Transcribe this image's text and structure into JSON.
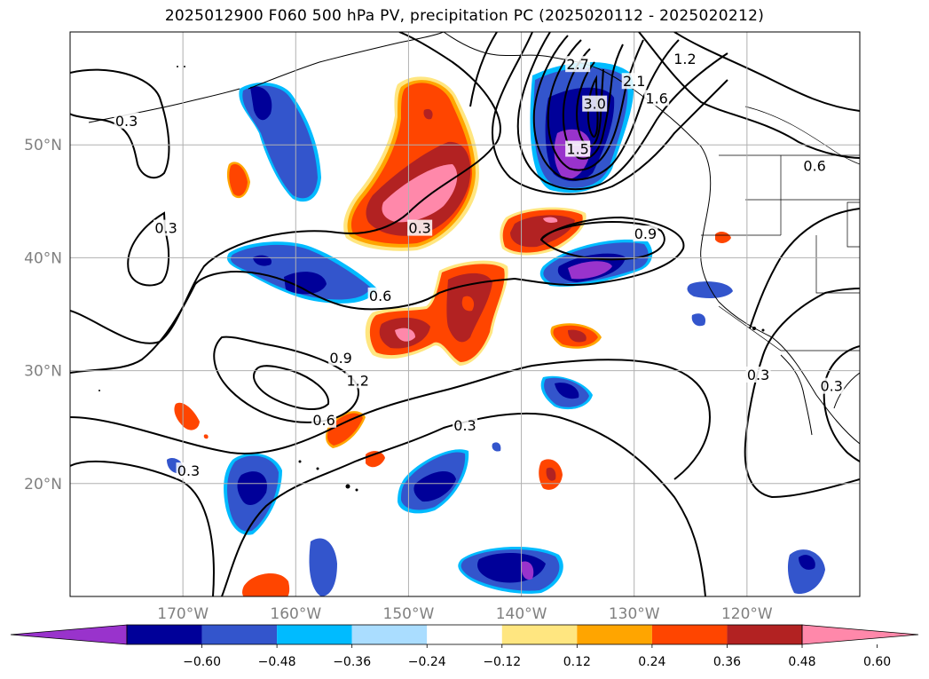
{
  "title": "2025012900 F060 500 hPa PV, precipitation PC (2025020112 - 2025020212)",
  "map": {
    "lat_ticks": [
      {
        "lat": 50,
        "label": "50°N"
      },
      {
        "lat": 40,
        "label": "40°N"
      },
      {
        "lat": 30,
        "label": "30°N"
      },
      {
        "lat": 20,
        "label": "20°N"
      }
    ],
    "lon_ticks": [
      {
        "lon": -170,
        "label": "170°W"
      },
      {
        "lon": -160,
        "label": "160°W"
      },
      {
        "lon": -150,
        "label": "150°W"
      },
      {
        "lon": -140,
        "label": "140°W"
      },
      {
        "lon": -130,
        "label": "130°W"
      },
      {
        "lon": -120,
        "label": "120°W"
      }
    ],
    "tick_label_color": "#808080",
    "contour_labels": [
      {
        "text": "0.3",
        "lon": -175,
        "lat": 52
      },
      {
        "text": "0.3",
        "lon": -171.5,
        "lat": 42.5
      },
      {
        "text": "0.3",
        "lon": -149,
        "lat": 42.5
      },
      {
        "text": "0.3",
        "lon": -145,
        "lat": 25
      },
      {
        "text": "0.3",
        "lon": -169.5,
        "lat": 21
      },
      {
        "text": "0.3",
        "lon": -119,
        "lat": 29.5
      },
      {
        "text": "0.3",
        "lon": -112.5,
        "lat": 28.5
      },
      {
        "text": "0.6",
        "lon": -152.5,
        "lat": 36.5
      },
      {
        "text": "0.6",
        "lon": -157.5,
        "lat": 25.5
      },
      {
        "text": "0.6",
        "lon": -114,
        "lat": 48
      },
      {
        "text": "0.9",
        "lon": -156,
        "lat": 31
      },
      {
        "text": "0.9",
        "lon": -129,
        "lat": 42
      },
      {
        "text": "1.2",
        "lon": -154.5,
        "lat": 29
      },
      {
        "text": "1.2",
        "lon": -125.5,
        "lat": 57.5
      },
      {
        "text": "2.7",
        "lon": -135,
        "lat": 57
      },
      {
        "text": "3.0",
        "lon": -133.5,
        "lat": 53.5
      },
      {
        "text": "1.5",
        "lon": -135,
        "lat": 49.5
      },
      {
        "text": "2.1",
        "lon": -130,
        "lat": 55.5
      },
      {
        "text": "1.6",
        "lon": -128,
        "lat": 54
      }
    ]
  },
  "colorbar": {
    "ticks": [
      "−0.60",
      "−0.48",
      "−0.36",
      "−0.24",
      "−0.12",
      "0.12",
      "0.24",
      "0.36",
      "0.48",
      "0.60"
    ],
    "colors": [
      "#9933cc",
      "#000099",
      "#3355cc",
      "#00bbff",
      "#aaddff",
      "#ffffff",
      "#ffe680",
      "#ffa500",
      "#ff4500",
      "#b22222",
      "#ff88aa"
    ]
  }
}
